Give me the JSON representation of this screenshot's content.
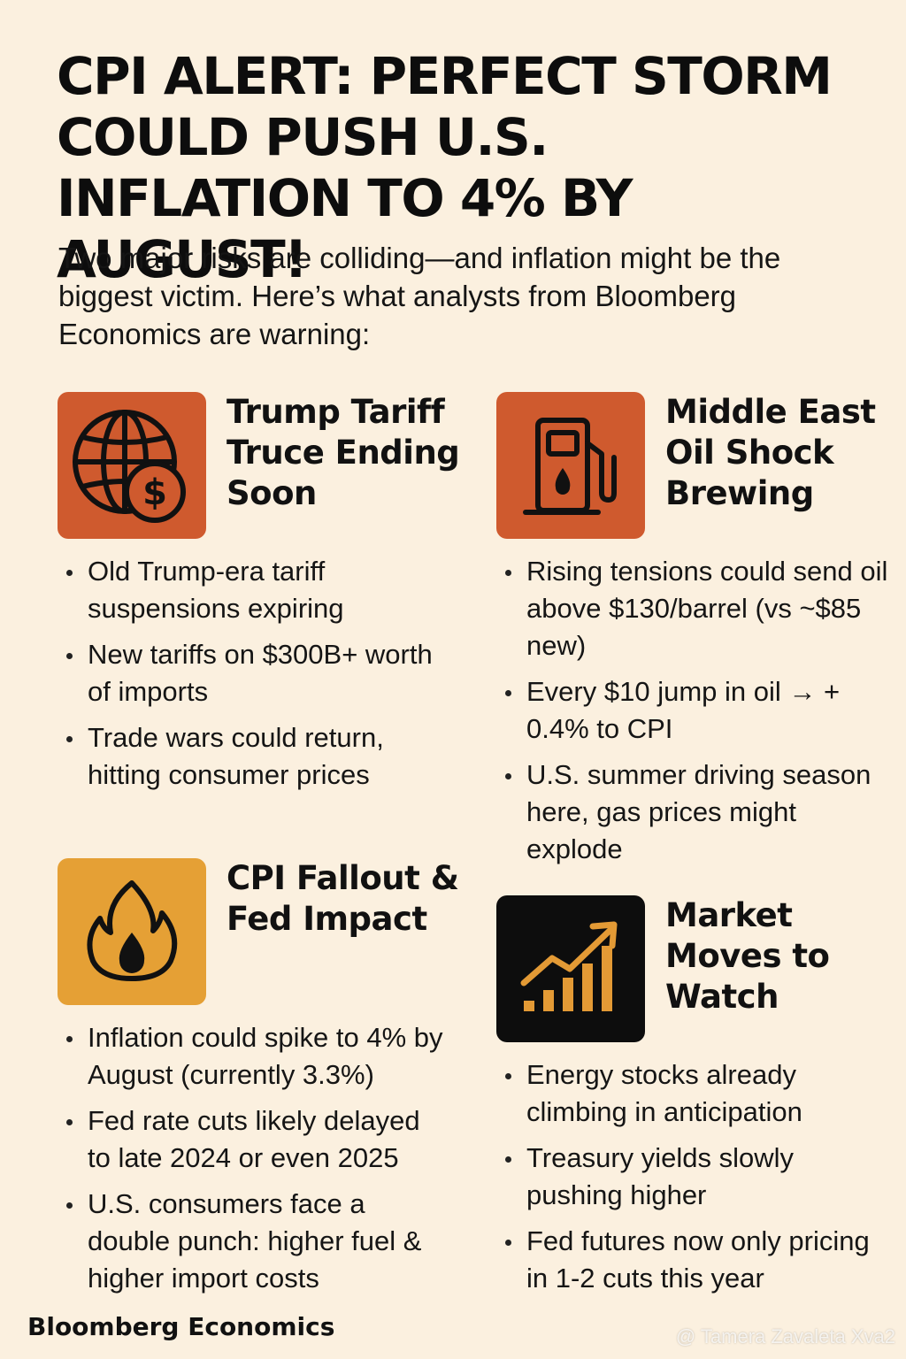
{
  "title": "CPI ALERT: PERFECT STORM COULD PUSH U.S. INFLATION TO 4% BY AUGUST!",
  "intro": "Two major risks are colliding—and inflation might be the biggest victim. Here’s what analysts from Bloomberg Economics are warning:",
  "colors": {
    "background": "#fbf0df",
    "orange_box": "#cf5a2e",
    "amber_box": "#e5a035",
    "black_box": "#0d0d0d",
    "chart_icon": "#e39a35"
  },
  "sections": [
    {
      "heading": "Trump Tariff Truce Ending Soon",
      "icon": "globe-dollar-icon",
      "bullets": [
        "Old Trump-era tariff suspensions expiring",
        "New tariffs on $300B+ worth of imports",
        "Trade wars could return, hitting consumer prices"
      ]
    },
    {
      "heading": "Middle East Oil Shock Brewing",
      "icon": "fuel-pump-icon",
      "bullets": [
        "Rising tensions could send oil above $130/barrel (vs ~$85 new)",
        "Every $10 jump in oil → + 0.4% to CPI",
        "U.S. summer driving season here, gas prices might explode"
      ]
    },
    {
      "heading": "CPI Fallout & Fed Impact",
      "icon": "flame-icon",
      "bullets": [
        "Inflation could spike to 4% by August (currently 3.3%)",
        "Fed rate cuts likely delayed to late 2024 or even 2025",
        "U.S. consumers face a double punch: higher fuel & higher import costs"
      ]
    },
    {
      "heading": "Market Moves to Watch",
      "icon": "rising-chart-icon",
      "bullets": [
        "Energy stocks already climbing in anticipation",
        "Treasury yields slowly pushing higher",
        "Fed futures now only pricing in 1-2 cuts this year"
      ]
    }
  ],
  "footer": {
    "brand": "Bloomberg Economics",
    "watermark": "@ Tamera Zavaleta Xva2"
  }
}
